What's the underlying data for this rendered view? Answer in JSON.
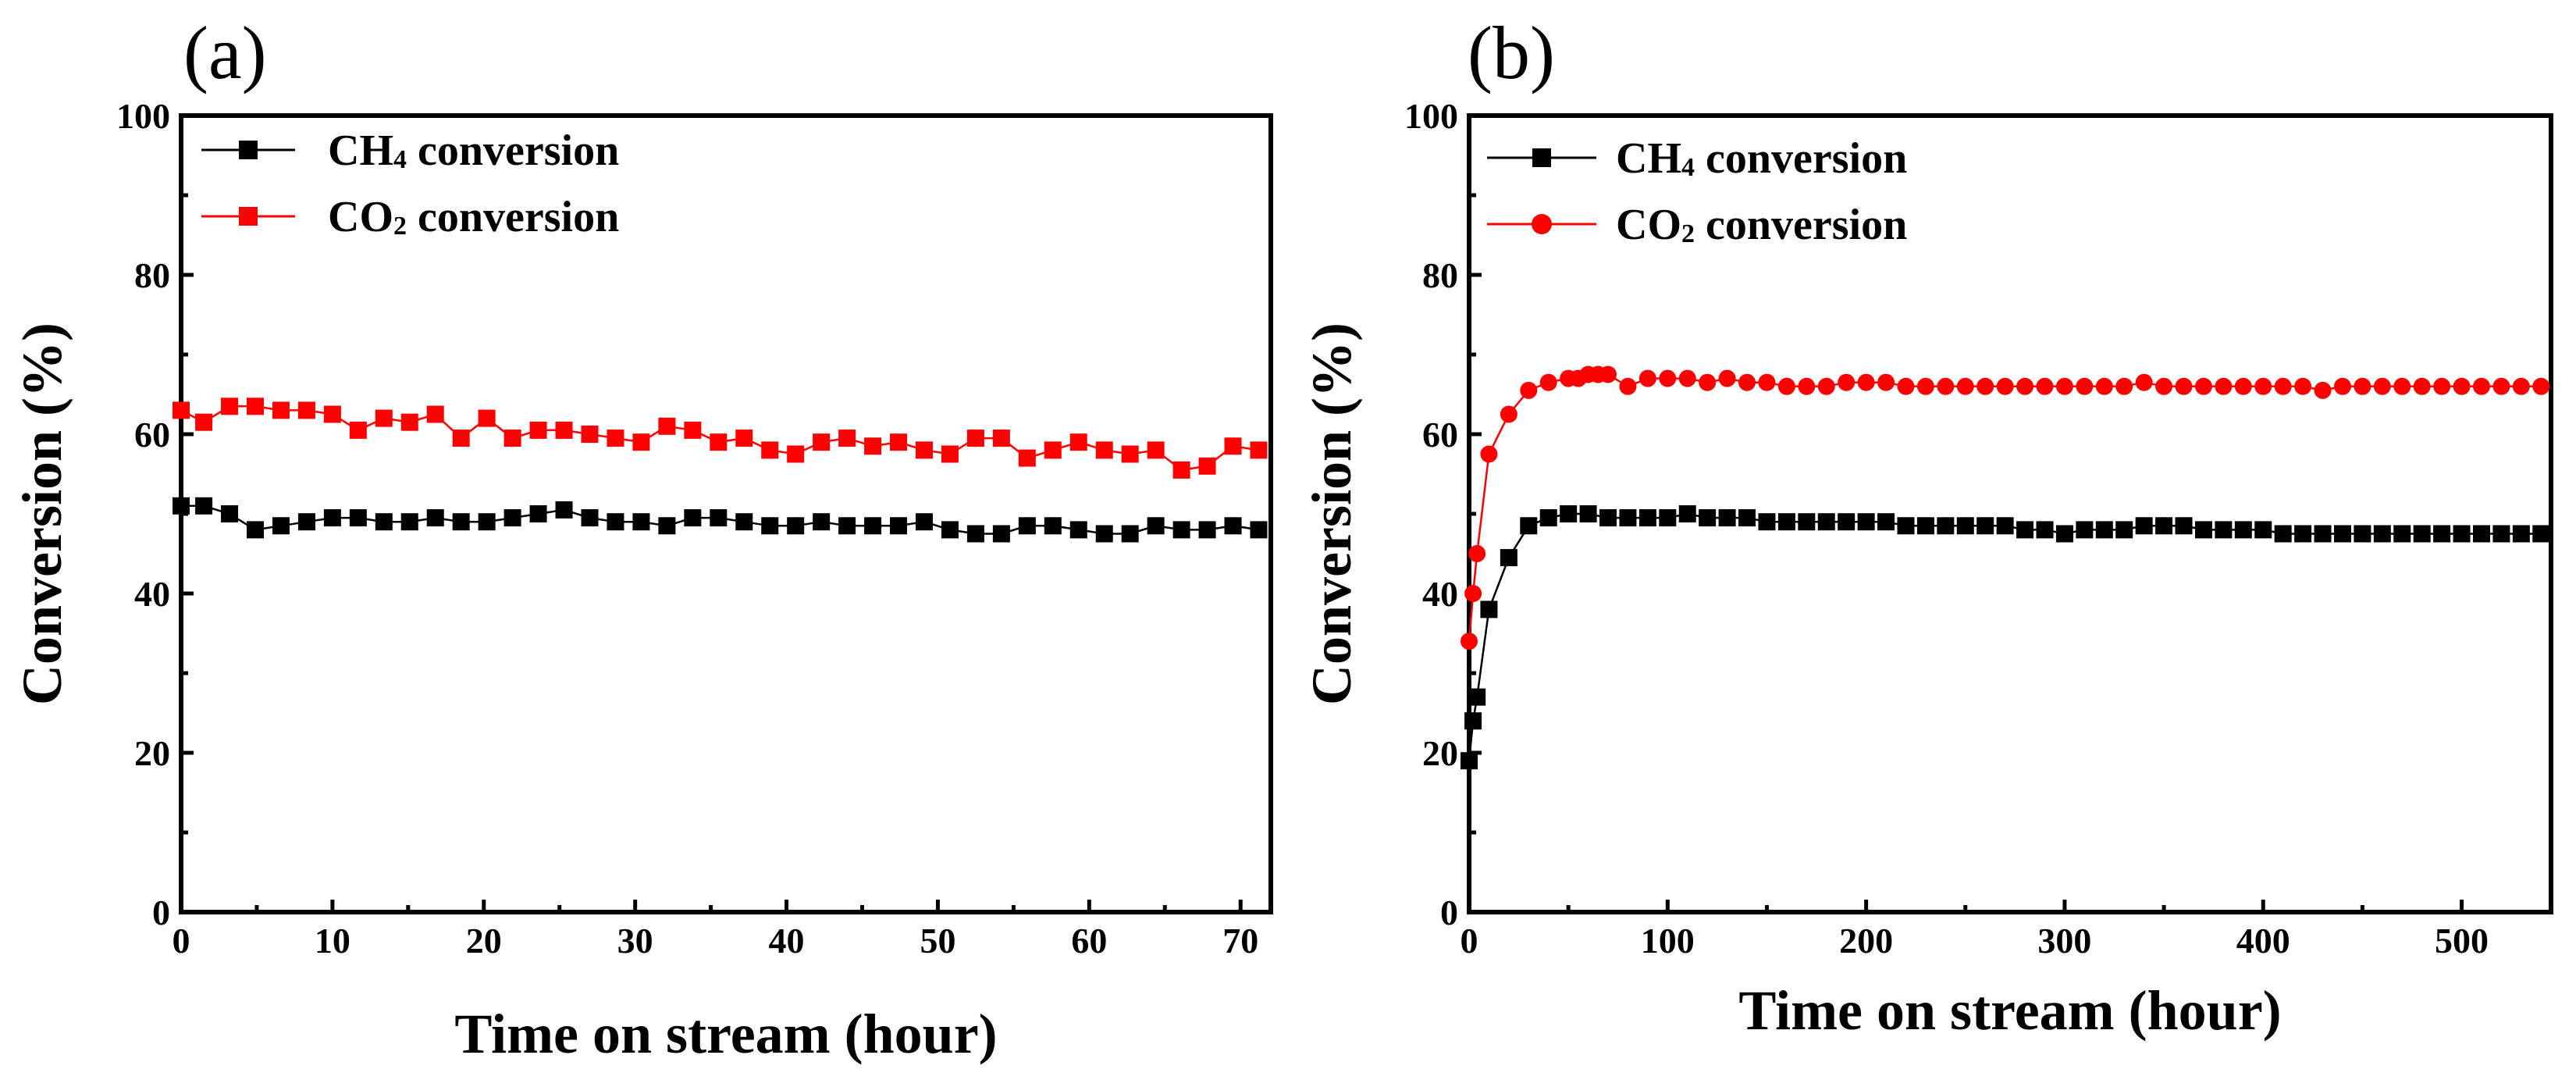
{
  "chart_data": [
    {
      "type": "line",
      "panel_label": "(a)",
      "xlabel": "Time on stream (hour)",
      "ylabel": "Conversion (%)",
      "xlim": [
        0,
        72
      ],
      "ylim": [
        0,
        100
      ],
      "xticks": [
        0,
        10,
        20,
        30,
        40,
        50,
        60,
        70
      ],
      "yticks": [
        0,
        20,
        40,
        60,
        80,
        100
      ],
      "legend_position": "top-left",
      "series": [
        {
          "name": "CH",
          "name_sub": "4",
          "name_rest": " conversion",
          "color": "#000000",
          "marker": "square",
          "x": [
            0,
            1.5,
            3.2,
            4.9,
            6.6,
            8.3,
            10,
            11.7,
            13.4,
            15.1,
            16.8,
            18.5,
            20.2,
            21.9,
            23.6,
            25.3,
            27,
            28.7,
            30.4,
            32.1,
            33.8,
            35.5,
            37.2,
            38.9,
            40.6,
            42.3,
            44,
            45.7,
            47.4,
            49.1,
            50.8,
            52.5,
            54.2,
            55.9,
            57.6,
            59.3,
            61,
            62.7,
            64.4,
            66.1,
            67.8,
            69.5,
            71.2
          ],
          "y": [
            51,
            51,
            50,
            48,
            48.5,
            49,
            49.5,
            49.5,
            49,
            49,
            49.5,
            49,
            49,
            49.5,
            50,
            50.5,
            49.5,
            49,
            49,
            48.5,
            49.5,
            49.5,
            49,
            48.5,
            48.5,
            49,
            48.5,
            48.5,
            48.5,
            49,
            48,
            47.5,
            47.5,
            48.5,
            48.5,
            48,
            47.5,
            47.5,
            48.5,
            48,
            48,
            48.5,
            48
          ]
        },
        {
          "name": "CO",
          "name_sub": "2",
          "name_rest": " conversion",
          "color": "#ff0000",
          "marker": "square",
          "x": [
            0,
            1.5,
            3.2,
            4.9,
            6.6,
            8.3,
            10,
            11.7,
            13.4,
            15.1,
            16.8,
            18.5,
            20.2,
            21.9,
            23.6,
            25.3,
            27,
            28.7,
            30.4,
            32.1,
            33.8,
            35.5,
            37.2,
            38.9,
            40.6,
            42.3,
            44,
            45.7,
            47.4,
            49.1,
            50.8,
            52.5,
            54.2,
            55.9,
            57.6,
            59.3,
            61,
            62.7,
            64.4,
            66.1,
            67.8,
            69.5,
            71.2
          ],
          "y": [
            63,
            61.5,
            63.5,
            63.5,
            63,
            63,
            62.5,
            60.5,
            62,
            61.5,
            62.5,
            59.5,
            62,
            59.5,
            60.5,
            60.5,
            60,
            59.5,
            59,
            61,
            60.5,
            59,
            59.5,
            58,
            57.5,
            59,
            59.5,
            58.5,
            59,
            58,
            57.5,
            59.5,
            59.5,
            57,
            58,
            59,
            58,
            57.5,
            58,
            55.5,
            56,
            58.5,
            58
          ]
        }
      ]
    },
    {
      "type": "line",
      "panel_label": "(b)",
      "xlabel": "Time on stream (hour)",
      "ylabel": "Conversion (%)",
      "xlim": [
        0,
        545
      ],
      "ylim": [
        0,
        100
      ],
      "xticks": [
        0,
        100,
        200,
        300,
        400,
        500
      ],
      "yticks": [
        0,
        20,
        40,
        60,
        80,
        100
      ],
      "legend_position": "top-left",
      "series": [
        {
          "name": "CH",
          "name_sub": "4",
          "name_rest": " conversion",
          "color": "#000000",
          "marker": "square",
          "x": [
            0,
            2,
            4,
            10,
            20,
            30,
            40,
            50,
            60,
            70,
            80,
            90,
            100,
            110,
            120,
            130,
            140,
            150,
            160,
            170,
            180,
            190,
            200,
            210,
            220,
            230,
            240,
            250,
            260,
            270,
            280,
            290,
            300,
            310,
            320,
            330,
            340,
            350,
            360,
            370,
            380,
            390,
            400,
            410,
            420,
            430,
            440,
            450,
            460,
            470,
            480,
            490,
            500,
            510,
            520,
            530,
            540
          ],
          "y": [
            19,
            24,
            27,
            38,
            44.5,
            48.5,
            49.5,
            50,
            50,
            49.5,
            49.5,
            49.5,
            49.5,
            50,
            49.5,
            49.5,
            49.5,
            49,
            49,
            49,
            49,
            49,
            49,
            49,
            48.5,
            48.5,
            48.5,
            48.5,
            48.5,
            48.5,
            48,
            48,
            47.5,
            48,
            48,
            48,
            48.5,
            48.5,
            48.5,
            48,
            48,
            48,
            48,
            47.5,
            47.5,
            47.5,
            47.5,
            47.5,
            47.5,
            47.5,
            47.5,
            47.5,
            47.5,
            47.5,
            47.5,
            47.5,
            47.5
          ]
        },
        {
          "name": "CO",
          "name_sub": "2",
          "name_rest": " conversion",
          "color": "#ff0000",
          "marker": "circle",
          "x": [
            0,
            2,
            4,
            10,
            20,
            30,
            40,
            50,
            55,
            60,
            65,
            70,
            80,
            90,
            100,
            110,
            120,
            130,
            140,
            150,
            160,
            170,
            180,
            190,
            200,
            210,
            220,
            230,
            240,
            250,
            260,
            270,
            280,
            290,
            300,
            310,
            320,
            330,
            340,
            350,
            360,
            370,
            380,
            390,
            400,
            410,
            420,
            430,
            440,
            450,
            460,
            470,
            480,
            490,
            500,
            510,
            520,
            530,
            540
          ],
          "y": [
            34,
            40,
            45,
            57.5,
            62.5,
            65.5,
            66.5,
            67,
            67,
            67.5,
            67.5,
            67.5,
            66,
            67,
            67,
            67,
            66.5,
            67,
            66.5,
            66.5,
            66,
            66,
            66,
            66.5,
            66.5,
            66.5,
            66,
            66,
            66,
            66,
            66,
            66,
            66,
            66,
            66,
            66,
            66,
            66,
            66.5,
            66,
            66,
            66,
            66,
            66,
            66,
            66,
            66,
            65.5,
            66,
            66,
            66,
            66,
            66,
            66,
            66,
            66,
            66,
            66,
            66
          ]
        }
      ]
    }
  ]
}
